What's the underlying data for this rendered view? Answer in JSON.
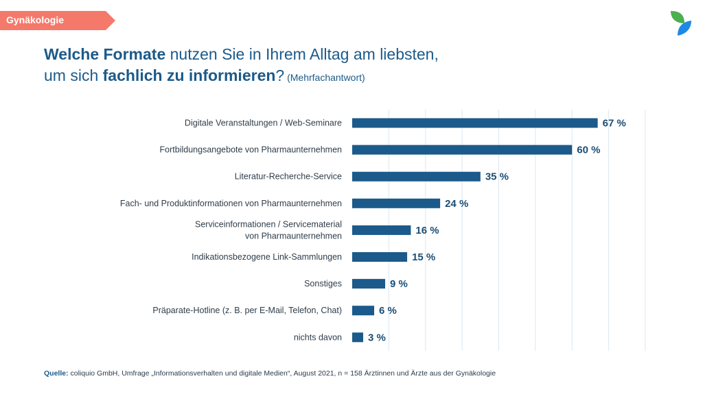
{
  "tag": {
    "label": "Gynäkologie",
    "color": "#f4796b"
  },
  "title": {
    "part1_bold": "Welche Formate",
    "part1_rest": " nutzen Sie in Ihrem Alltag am liebsten,",
    "part2_start": "um sich ",
    "part2_bold": "fachlich zu informieren",
    "part2_end": "?",
    "note": " (Mehrfachantwort)"
  },
  "logo": {
    "icon": "leaf-logo-icon",
    "colors": [
      "#4caf50",
      "#1e88e5"
    ]
  },
  "chart_data": {
    "type": "bar",
    "orientation": "horizontal",
    "categories": [
      [
        "Digitale Veranstaltungen / Web-Seminare"
      ],
      [
        "Fortbildungsangebote von Pharmaunternehmen"
      ],
      [
        "Literatur-Recherche-Service"
      ],
      [
        "Fach- und Produktinformationen von Pharmaunternehmen"
      ],
      [
        "Serviceinformationen / Servicematerial",
        "von Pharmaunternehmen"
      ],
      [
        "Indikationsbezogene Link-Sammlungen"
      ],
      [
        "Sonstiges"
      ],
      [
        "Präparate-Hotline (z. B. per E-Mail, Telefon, Chat)"
      ],
      [
        "nichts davon"
      ]
    ],
    "values": [
      67,
      60,
      35,
      24,
      16,
      15,
      9,
      6,
      3
    ],
    "value_labels": [
      "67 %",
      "60 %",
      "35 %",
      "24 %",
      "16 %",
      "15 %",
      "9 %",
      "6 %",
      "3 %"
    ],
    "xlim": [
      0,
      80
    ],
    "grid": true,
    "bar_color": "#1b5a8a",
    "grid_color": "#d9e8f3"
  },
  "source": {
    "label": "Quelle:",
    "text": " coliquio GmbH, Umfrage „Informationsverhalten und digitale Medien“, August 2021, n = 158 Ärztinnen und Ärzte aus der Gynäkologie"
  }
}
